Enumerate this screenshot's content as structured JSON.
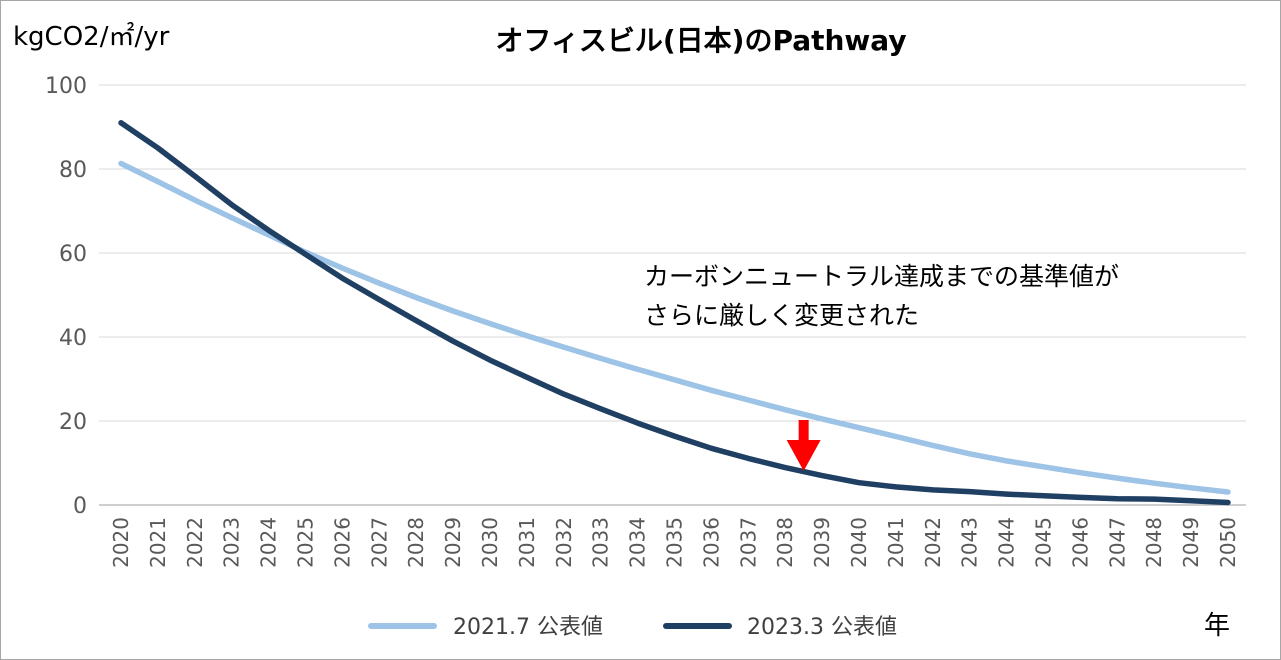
{
  "chart_data": {
    "type": "line",
    "title": "オフィスビル(日本)のPathway",
    "ylabel": "kgCO2/㎡/yr",
    "xlabel": "年",
    "ylim": [
      0,
      100
    ],
    "yticks": [
      0,
      20,
      40,
      60,
      80,
      100
    ],
    "grid": true,
    "legend_position": "bottom",
    "x": [
      2020,
      2021,
      2022,
      2023,
      2024,
      2025,
      2026,
      2027,
      2028,
      2029,
      2030,
      2031,
      2032,
      2033,
      2034,
      2035,
      2036,
      2037,
      2038,
      2039,
      2040,
      2041,
      2042,
      2043,
      2044,
      2045,
      2046,
      2047,
      2048,
      2049,
      2050
    ],
    "series": [
      {
        "name": "2021.7 公表値",
        "color": "#9dc3e6",
        "values": [
          81.3,
          77.0,
          72.6,
          68.4,
          64.3,
          60.2,
          56.4,
          52.8,
          49.4,
          46.2,
          43.2,
          40.3,
          37.6,
          34.9,
          32.3,
          29.8,
          27.3,
          25.0,
          22.7,
          20.5,
          18.4,
          16.3,
          14.2,
          12.2,
          10.5,
          9.1,
          7.7,
          6.4,
          5.2,
          4.1,
          3.1
        ]
      },
      {
        "name": "2023.3 公表値",
        "color": "#1f3f63",
        "values": [
          91.0,
          85.0,
          78.3,
          71.5,
          65.4,
          59.7,
          54.0,
          48.9,
          43.9,
          39.0,
          34.5,
          30.4,
          26.4,
          22.9,
          19.5,
          16.4,
          13.5,
          11.1,
          8.9,
          7.0,
          5.3,
          4.3,
          3.6,
          3.2,
          2.6,
          2.2,
          1.8,
          1.5,
          1.4,
          1.0,
          0.6
        ]
      }
    ],
    "annotation": {
      "lines": [
        "カーボンニュートラル達成までの基準値が",
        "さらに厳しく変更された"
      ],
      "arrow_color": "#ff0000",
      "arrow_x": 2038.5
    }
  }
}
